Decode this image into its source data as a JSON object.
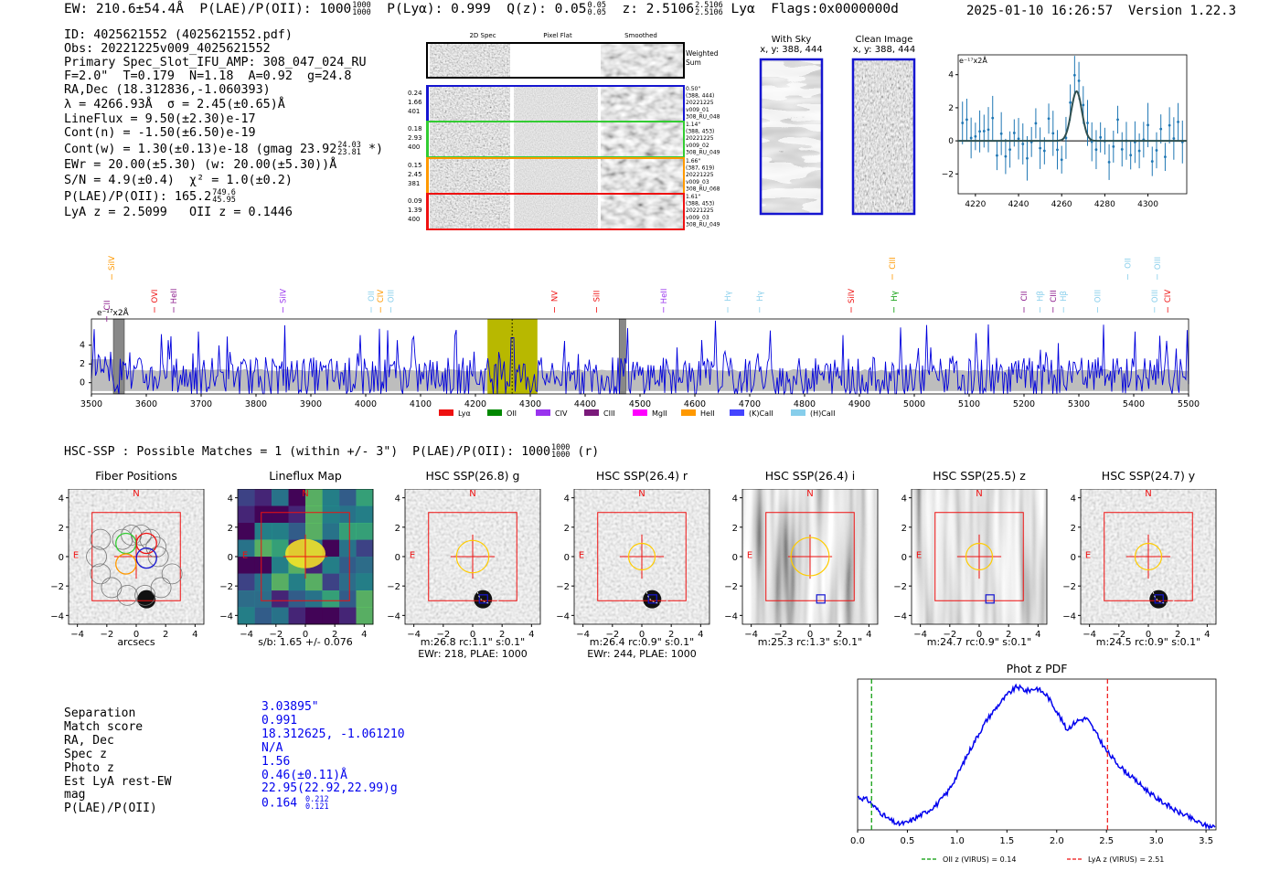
{
  "header": {
    "ew": "EW: 210.6±54.4Å",
    "plae_label": "P(LAE)/P(OII): 1000",
    "plae_hi": "1000",
    "plae_lo": "1000",
    "plya": "P(Lyα): 0.999",
    "qz_label": "Q(z): 0.05",
    "qz_hi": "0.05",
    "qz_lo": "0.05",
    "z_label": "z: 2.5106",
    "z_hi": "2.5106",
    "z_lo": "2.5106",
    "z_line": "Lyα",
    "flags": "Flags:0x0000000d",
    "date": "2025-01-10 16:26:57",
    "version": "Version 1.22.3"
  },
  "summary": {
    "id": "ID: 4025621552 (4025621552.pdf)",
    "obs": "Obs: 20221225v009_4025621552",
    "spec_slot": "Primary Spec_Slot_IFU_AMP: 308_047_024_RU",
    "fit": "F=2.0\"  T=0.179  N=1.18  A=0.92  g=24.8",
    "radec": "RA,Dec (18.312836,-1.060393)",
    "lambda_sigma": "λ = 4266.93Å  σ = 2.45(±0.65)Å",
    "lineflux": "LineFlux = 9.50(±2.30)e-17",
    "contn": "Cont(n) = -1.50(±6.50)e-19",
    "contw": "Cont(w) = 1.30(±0.13)e-18 (gmag 23.92",
    "contw_hi": "24.03",
    "contw_lo": "23.81",
    "contw_tail": "*)",
    "ewr": "EWr = 20.00(±5.30) (w: 20.00(±5.30))Å",
    "sn": "S/N = 4.9(±0.4)  χ² = 1.0(±0.2)",
    "plae": "P(LAE)/P(OII): 165.2",
    "plae_hi": "749.6",
    "plae_lo": "45.95",
    "lyaz": "LyA z = 2.5099   OII z = 0.1446"
  },
  "cutouts": {
    "col_headers": [
      "2D Spec",
      "Pixel Flat",
      "Smoothed"
    ],
    "weighted_sum": "Weighted Sum",
    "rows": [
      {
        "stats": [
          "0.24",
          "1.66",
          "401"
        ],
        "info": [
          "0.50\"",
          "(388, 444)",
          "20221225",
          "v009_01",
          "308_RU_048"
        ],
        "color": "#1515d0"
      },
      {
        "stats": [
          "0.18",
          "2.93",
          "400"
        ],
        "info": [
          "1.14\"",
          "(388, 453)",
          "20221225",
          "v009_02",
          "308_RU_049"
        ],
        "color": "#33cc33"
      },
      {
        "stats": [
          "0.15",
          "2.45",
          "381"
        ],
        "info": [
          "1.66\"",
          "(387, 619)",
          "20221225",
          "v009_03",
          "308_RU_068"
        ],
        "color": "#ff9900"
      },
      {
        "stats": [
          "0.09",
          "1.39",
          "400"
        ],
        "info": [
          "1.61\"",
          "(388, 453)",
          "20221225",
          "v009_03",
          "308_RU_049"
        ],
        "color": "#ee1111"
      }
    ],
    "with_sky_title": "With Sky",
    "with_sky_xy": "x, y: 388, 444",
    "clean_title": "Clean Image",
    "clean_xy": "x, y: 388, 444"
  },
  "line_fit": {
    "unit": "e⁻¹⁷x2Å",
    "xlim": [
      4212,
      4318
    ],
    "ylim": [
      -3.2,
      5.2
    ],
    "xticks": [
      4220,
      4240,
      4260,
      4280,
      4300
    ],
    "yticks": [
      -2,
      0,
      2,
      4
    ],
    "center": 4266.9,
    "amplitude": 3.0,
    "sigma": 2.45
  },
  "full_spectrum": {
    "unit": "e⁻¹⁷x2Å",
    "xlim": [
      3500,
      5500
    ],
    "ylim": [
      -1.2,
      6.8
    ],
    "xticks": [
      3500,
      3600,
      3700,
      3800,
      3900,
      4000,
      4100,
      4200,
      4300,
      4400,
      4500,
      4600,
      4700,
      4800,
      4900,
      5000,
      5100,
      5200,
      5300,
      5400,
      5500
    ],
    "yticks": [
      0,
      2,
      4
    ],
    "highlight": [
      4222,
      4313
    ],
    "marker": 4266.9,
    "masks": [
      [
        3540,
        3560
      ],
      [
        4462,
        4474
      ]
    ],
    "lines": [
      {
        "name": "CII",
        "x": 3528,
        "row": "low",
        "color": "#8b1a8b"
      },
      {
        "name": "SiIV",
        "x": 3537,
        "row": "high",
        "color": "#ff9900"
      },
      {
        "name": "OVI",
        "x": 3615,
        "row": "mid",
        "color": "#ee1111"
      },
      {
        "name": "HeII",
        "x": 3650,
        "row": "mid",
        "color": "#8b1a8b"
      },
      {
        "name": "SiIV",
        "x": 3849,
        "row": "mid",
        "color": "#9933ee"
      },
      {
        "name": "OII",
        "x": 4010,
        "row": "mid",
        "color": "#87ceeb"
      },
      {
        "name": "CIV",
        "x": 4027,
        "row": "mid",
        "color": "#ff9900"
      },
      {
        "name": "OIII",
        "x": 4046,
        "row": "mid",
        "color": "#87ceeb"
      },
      {
        "name": "NV",
        "x": 4344,
        "row": "mid",
        "color": "#ee1111"
      },
      {
        "name": "SiII",
        "x": 4421,
        "row": "mid",
        "color": "#ee1111"
      },
      {
        "name": "HeII",
        "x": 4543,
        "row": "mid",
        "color": "#9933ee"
      },
      {
        "name": "Hγ",
        "x": 4660,
        "row": "mid",
        "color": "#87ceeb"
      },
      {
        "name": "Hγ",
        "x": 4718,
        "row": "mid",
        "color": "#87ceeb"
      },
      {
        "name": "SiIV",
        "x": 4885,
        "row": "mid",
        "color": "#ee1111"
      },
      {
        "name": "CIII",
        "x": 4960,
        "row": "high",
        "color": "#ff9900"
      },
      {
        "name": "Hγ",
        "x": 4963,
        "row": "mid",
        "color": "#009900"
      },
      {
        "name": "CII",
        "x": 5200,
        "row": "mid",
        "color": "#8b1a8b"
      },
      {
        "name": "Hβ",
        "x": 5229,
        "row": "mid",
        "color": "#87ceeb"
      },
      {
        "name": "CIII",
        "x": 5253,
        "row": "mid",
        "color": "#8b1a8b"
      },
      {
        "name": "Hβ",
        "x": 5272,
        "row": "mid",
        "color": "#87ceeb"
      },
      {
        "name": "OIII",
        "x": 5334,
        "row": "mid",
        "color": "#87ceeb"
      },
      {
        "name": "OII",
        "x": 5389,
        "row": "high",
        "color": "#87ceeb"
      },
      {
        "name": "OIII",
        "x": 5438,
        "row": "mid",
        "color": "#87ceeb"
      },
      {
        "name": "OIII",
        "x": 5443,
        "row": "high",
        "color": "#87ceeb"
      },
      {
        "name": "CIV",
        "x": 5462,
        "row": "mid",
        "color": "#ee1111"
      }
    ],
    "legend": [
      {
        "label": "Lyα",
        "color": "#ee1111"
      },
      {
        "label": "OII",
        "color": "#008800"
      },
      {
        "label": "CIV",
        "color": "#9933ee"
      },
      {
        "label": "CIII",
        "color": "#7a1a7a"
      },
      {
        "label": "MgII",
        "color": "#ff00ff"
      },
      {
        "label": "HeII",
        "color": "#ff9900"
      },
      {
        "label": "(K)CaII",
        "color": "#4444ff"
      },
      {
        "label": "(H)CaII",
        "color": "#87ceeb"
      }
    ]
  },
  "hsc": {
    "heading": "HSC-SSP : Possible Matches = 1 (within +/- 3\")  P(LAE)/P(OII): 1000",
    "heading_hi": "1000",
    "heading_lo": "1000",
    "heading_tail": "(r)",
    "panels": [
      {
        "title": "Fiber Positions",
        "sub1": "arcsecs",
        "sub2": ""
      },
      {
        "title": "Lineflux Map",
        "sub1": "s/b: 1.65 +/- 0.076",
        "sub2": ""
      },
      {
        "title": "HSC SSP(26.8) g",
        "sub1": "m:26.8 rc:1.1\"  s:0.1\"",
        "sub2": "EWr: 218, PLAE: 1000"
      },
      {
        "title": "HSC SSP(26.4) r",
        "sub1": "m:26.4 rc:0.9\"  s:0.1\"",
        "sub2": "EWr: 244, PLAE: 1000"
      },
      {
        "title": "HSC SSP(26.4) i",
        "sub1": "m:25.3 rc:1.3\"  s:0.1\"",
        "sub2": ""
      },
      {
        "title": "HSC SSP(25.5) z",
        "sub1": "m:24.7 rc:0.9\"  s:0.1\"",
        "sub2": ""
      },
      {
        "title": "HSC SSP(24.7) y",
        "sub1": "m:24.5 rc:0.9\"  s:0.1\"",
        "sub2": ""
      }
    ],
    "compass_n": "N",
    "compass_e": "E",
    "ticks": [
      "−4",
      "−2",
      "0",
      "2",
      "4"
    ]
  },
  "match": {
    "labels": [
      "Separation",
      "Match score",
      "RA, Dec",
      "Spec z",
      "Photo z",
      "Est LyA rest-EW",
      "mag",
      "P(LAE)/P(OII)"
    ],
    "values": [
      "3.03895\"",
      "0.991",
      "18.312625, -1.061210",
      "N/A",
      "1.56",
      "0.46(±0.11)Å",
      "22.95(22.92,22.99)g",
      "0.164"
    ],
    "plae_hi": "0.212",
    "plae_lo": "0.121"
  },
  "chart_data": [
    {
      "type": "line",
      "title": "Phot z PDF",
      "xlabel": "",
      "ylabel": "",
      "xlim": [
        0.0,
        3.6
      ],
      "xticks": [
        0.0,
        0.5,
        1.0,
        1.5,
        2.0,
        2.5,
        3.0,
        3.5
      ],
      "x": [
        0.0,
        0.1,
        0.2,
        0.3,
        0.4,
        0.5,
        0.6,
        0.7,
        0.8,
        0.9,
        1.0,
        1.1,
        1.2,
        1.3,
        1.4,
        1.5,
        1.6,
        1.7,
        1.8,
        1.9,
        2.0,
        2.1,
        2.2,
        2.3,
        2.4,
        2.5,
        2.6,
        2.7,
        2.8,
        2.9,
        3.0,
        3.1,
        3.2,
        3.3,
        3.4,
        3.5,
        3.6
      ],
      "y": [
        0.23,
        0.21,
        0.14,
        0.08,
        0.04,
        0.05,
        0.09,
        0.13,
        0.18,
        0.26,
        0.38,
        0.52,
        0.65,
        0.77,
        0.86,
        0.94,
        1.0,
        0.97,
        0.99,
        0.94,
        0.83,
        0.7,
        0.76,
        0.78,
        0.67,
        0.55,
        0.47,
        0.4,
        0.34,
        0.28,
        0.22,
        0.18,
        0.13,
        0.1,
        0.06,
        0.03,
        0.02
      ],
      "vlines": [
        {
          "x": 0.14,
          "label": "OII z (VIRUS) = 0.14",
          "color": "#009900"
        },
        {
          "x": 2.51,
          "label": "LyA z (VIRUS) = 2.51",
          "color": "#ee1111"
        }
      ]
    }
  ]
}
